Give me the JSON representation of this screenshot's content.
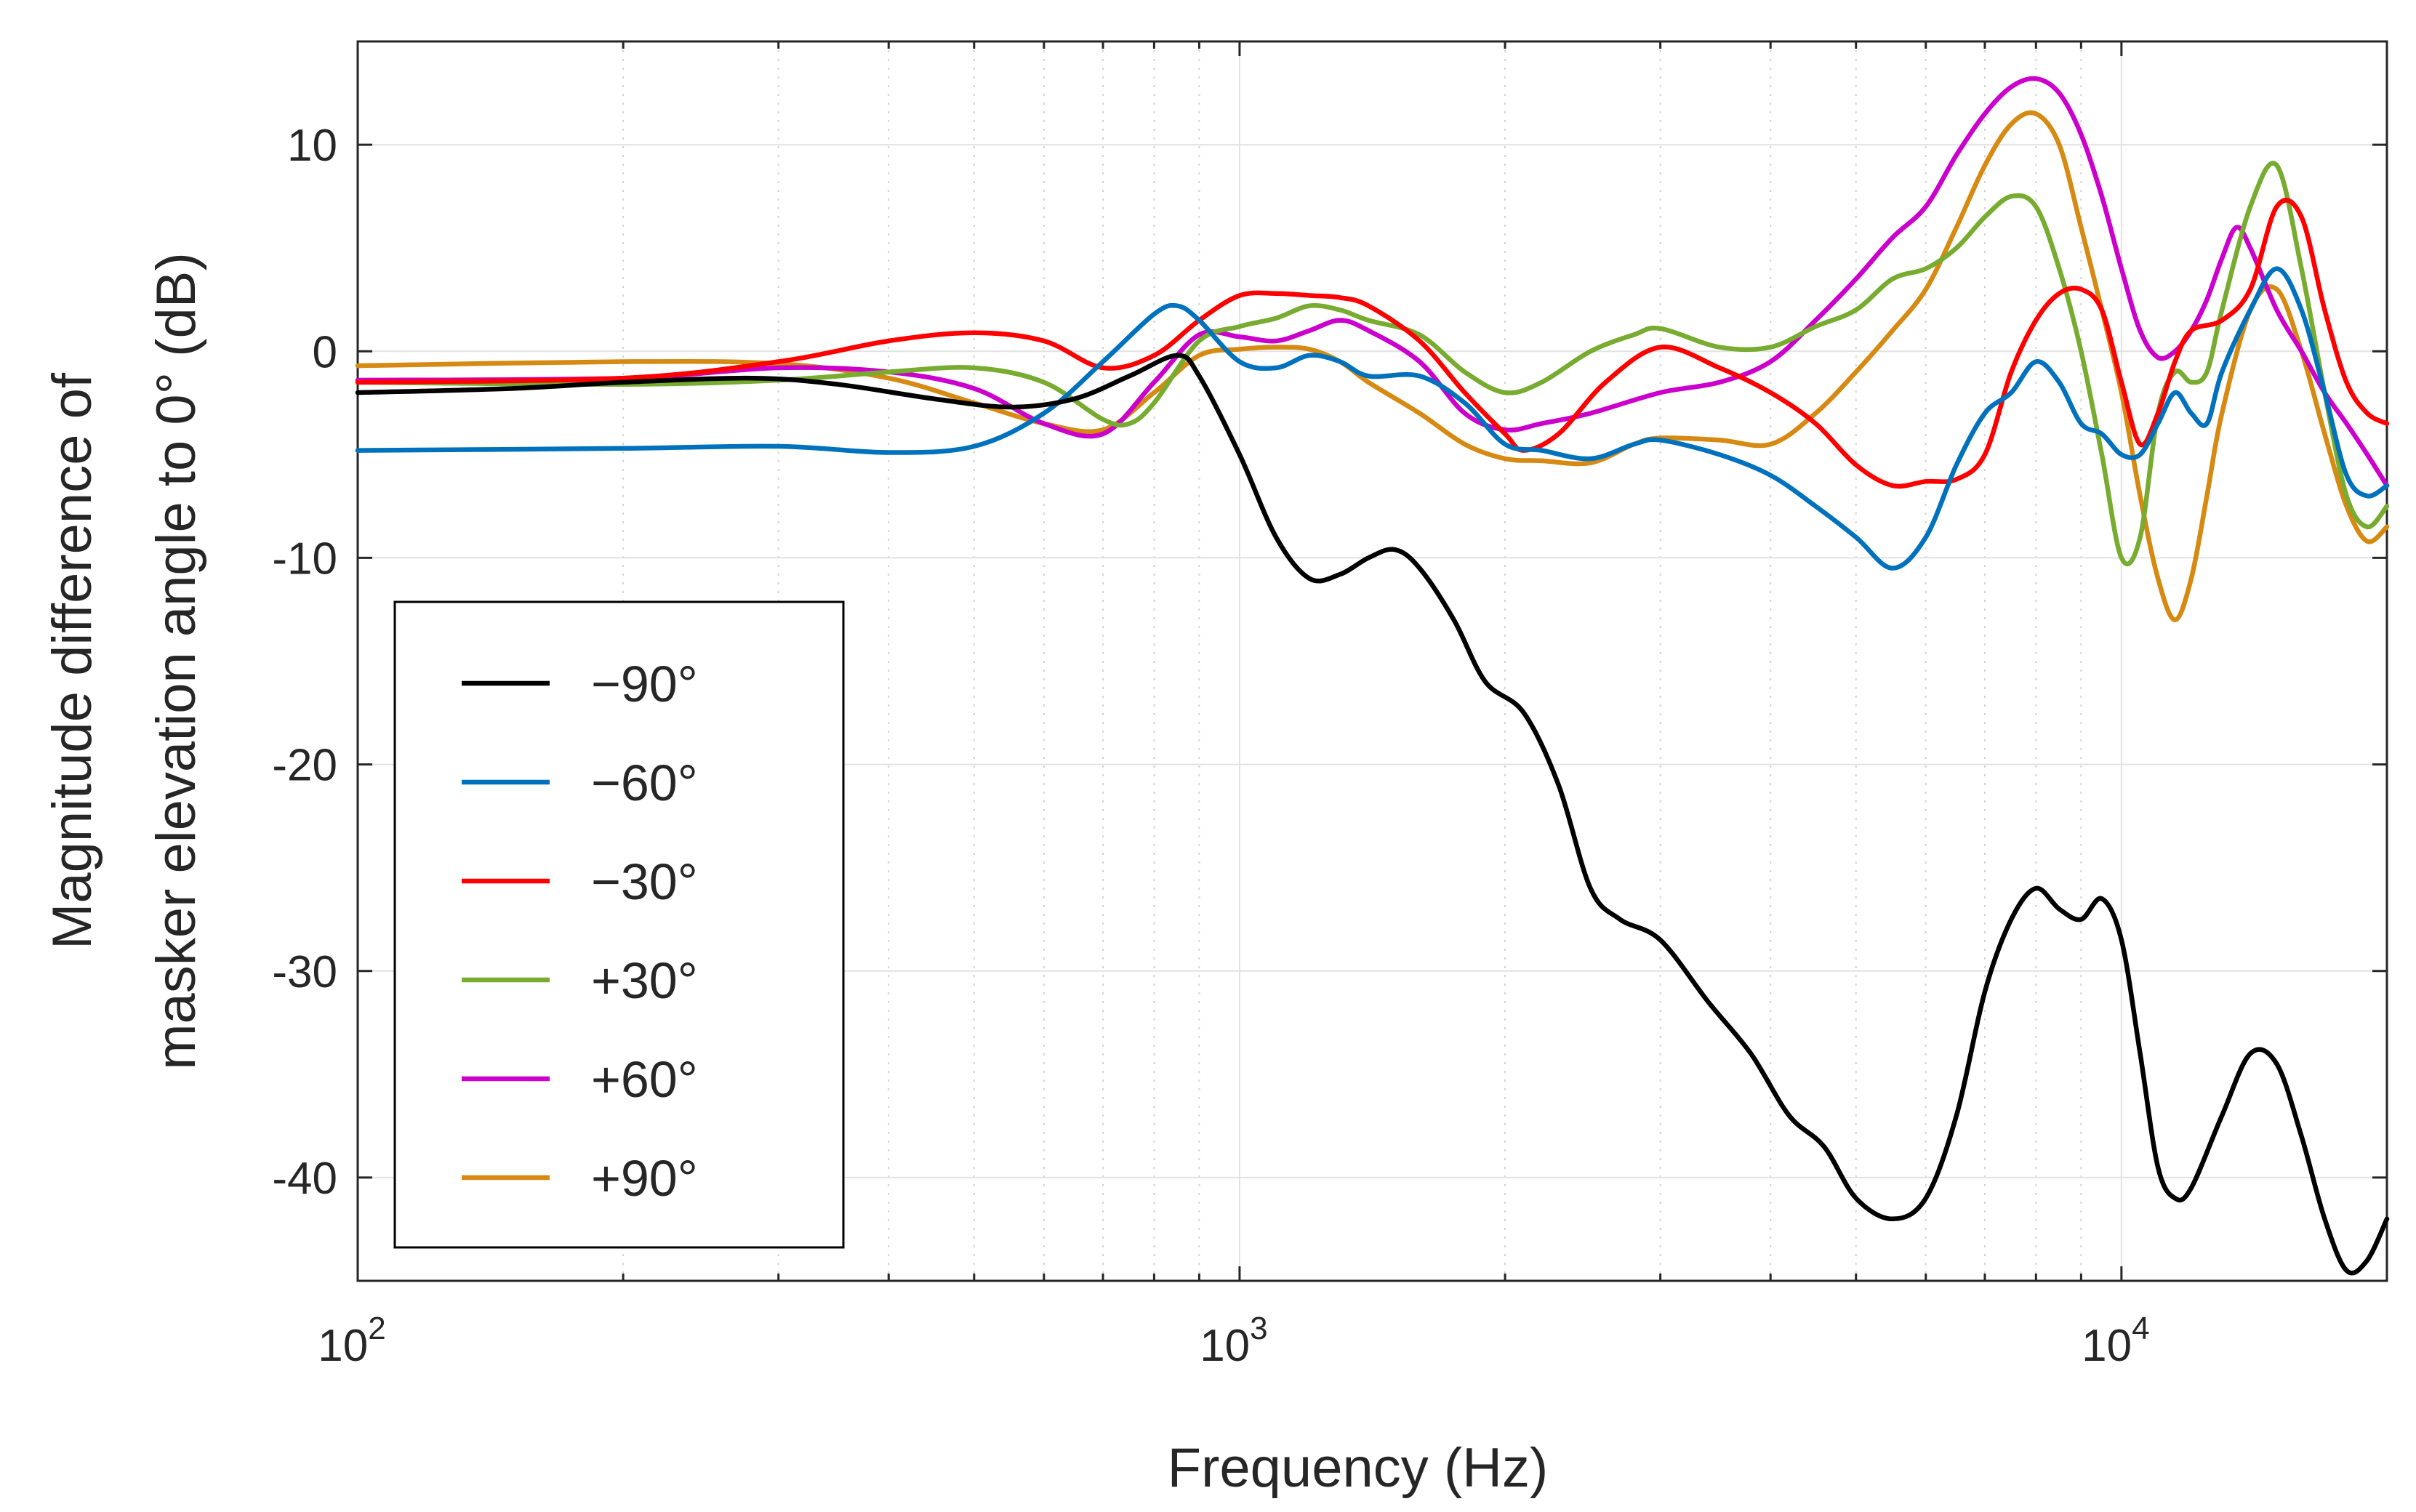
{
  "chart_data": {
    "type": "line",
    "title": "",
    "xlabel": "Frequency (Hz)",
    "ylabel": [
      "Magnitude difference of",
      "masker elevation angle to 0° (dB)"
    ],
    "x_scale": "log",
    "xlim": [
      100,
      20000
    ],
    "ylim": [
      -45,
      15
    ],
    "grid": true,
    "legend_location": "bottom-left",
    "x_ticks": [
      {
        "value": 100,
        "base": "10",
        "exp": "2"
      },
      {
        "value": 1000,
        "base": "10",
        "exp": "3"
      },
      {
        "value": 10000,
        "base": "10",
        "exp": "4"
      }
    ],
    "y_ticks": [
      {
        "value": 10,
        "label": "10"
      },
      {
        "value": 0,
        "label": "0"
      },
      {
        "value": -10,
        "label": "-10"
      },
      {
        "value": -20,
        "label": "-20"
      },
      {
        "value": -30,
        "label": "-30"
      },
      {
        "value": -40,
        "label": "-40"
      }
    ],
    "series": [
      {
        "name": "−90°",
        "color": "#000000",
        "points": [
          [
            100,
            -2
          ],
          [
            150,
            -1.8
          ],
          [
            200,
            -1.5
          ],
          [
            280,
            -1.3
          ],
          [
            350,
            -1.6
          ],
          [
            450,
            -2.3
          ],
          [
            550,
            -2.7
          ],
          [
            650,
            -2.3
          ],
          [
            750,
            -1.2
          ],
          [
            850,
            -0.2
          ],
          [
            900,
            -1.2
          ],
          [
            1000,
            -5
          ],
          [
            1100,
            -9
          ],
          [
            1200,
            -11
          ],
          [
            1300,
            -10.8
          ],
          [
            1400,
            -10
          ],
          [
            1500,
            -9.6
          ],
          [
            1600,
            -10.5
          ],
          [
            1750,
            -13
          ],
          [
            1900,
            -16
          ],
          [
            2100,
            -17.5
          ],
          [
            2300,
            -21
          ],
          [
            2500,
            -26
          ],
          [
            2700,
            -27.5
          ],
          [
            3000,
            -28.5
          ],
          [
            3400,
            -31.5
          ],
          [
            3800,
            -34
          ],
          [
            4200,
            -37
          ],
          [
            4600,
            -38.5
          ],
          [
            5000,
            -41
          ],
          [
            5500,
            -42
          ],
          [
            6000,
            -41
          ],
          [
            6500,
            -37
          ],
          [
            7000,
            -31
          ],
          [
            7500,
            -27.5
          ],
          [
            8000,
            -26
          ],
          [
            8500,
            -27
          ],
          [
            9000,
            -27.5
          ],
          [
            9500,
            -26.5
          ],
          [
            10000,
            -28.5
          ],
          [
            10500,
            -34
          ],
          [
            11000,
            -39.5
          ],
          [
            11500,
            -41
          ],
          [
            12000,
            -40.5
          ],
          [
            13000,
            -37
          ],
          [
            14000,
            -34
          ],
          [
            15000,
            -34.5
          ],
          [
            16000,
            -38
          ],
          [
            17000,
            -42
          ],
          [
            18000,
            -44.5
          ],
          [
            19000,
            -44
          ],
          [
            20000,
            -42
          ]
        ]
      },
      {
        "name": "−60°",
        "color": "#0072BD",
        "points": [
          [
            100,
            -4.8
          ],
          [
            200,
            -4.7
          ],
          [
            300,
            -4.6
          ],
          [
            400,
            -4.9
          ],
          [
            500,
            -4.6
          ],
          [
            600,
            -3
          ],
          [
            700,
            -0.5
          ],
          [
            800,
            1.8
          ],
          [
            850,
            2.2
          ],
          [
            900,
            1.5
          ],
          [
            1000,
            -0.5
          ],
          [
            1100,
            -0.8
          ],
          [
            1200,
            -0.2
          ],
          [
            1300,
            -0.5
          ],
          [
            1400,
            -1.2
          ],
          [
            1600,
            -1.2
          ],
          [
            1800,
            -2.5
          ],
          [
            2000,
            -4.5
          ],
          [
            2200,
            -4.8
          ],
          [
            2500,
            -5.2
          ],
          [
            2800,
            -4.5
          ],
          [
            3000,
            -4.3
          ],
          [
            3500,
            -5
          ],
          [
            4000,
            -6
          ],
          [
            4500,
            -7.5
          ],
          [
            5000,
            -9
          ],
          [
            5500,
            -10.5
          ],
          [
            6000,
            -9
          ],
          [
            6500,
            -5.5
          ],
          [
            7000,
            -3
          ],
          [
            7500,
            -2
          ],
          [
            8000,
            -0.5
          ],
          [
            8500,
            -1.5
          ],
          [
            9000,
            -3.5
          ],
          [
            9500,
            -4
          ],
          [
            10000,
            -5
          ],
          [
            10500,
            -5
          ],
          [
            11000,
            -3.5
          ],
          [
            11500,
            -2
          ],
          [
            12000,
            -3
          ],
          [
            12500,
            -3.5
          ],
          [
            13000,
            -1
          ],
          [
            14000,
            2
          ],
          [
            15000,
            4
          ],
          [
            16000,
            2
          ],
          [
            17000,
            -2
          ],
          [
            18000,
            -6
          ],
          [
            19000,
            -7
          ],
          [
            20000,
            -6.5
          ]
        ]
      },
      {
        "name": "−30°",
        "color": "#FF0000",
        "points": [
          [
            100,
            -1.5
          ],
          [
            200,
            -1.3
          ],
          [
            300,
            -0.5
          ],
          [
            400,
            0.5
          ],
          [
            500,
            0.9
          ],
          [
            600,
            0.5
          ],
          [
            700,
            -0.8
          ],
          [
            800,
            -0.2
          ],
          [
            900,
            1.5
          ],
          [
            1000,
            2.7
          ],
          [
            1100,
            2.8
          ],
          [
            1200,
            2.7
          ],
          [
            1300,
            2.6
          ],
          [
            1400,
            2.2
          ],
          [
            1600,
            0.5
          ],
          [
            1800,
            -2
          ],
          [
            2000,
            -4
          ],
          [
            2100,
            -4.8
          ],
          [
            2300,
            -4
          ],
          [
            2600,
            -1.5
          ],
          [
            3000,
            0.2
          ],
          [
            3500,
            -0.8
          ],
          [
            4000,
            -2
          ],
          [
            4500,
            -3.5
          ],
          [
            5000,
            -5.5
          ],
          [
            5500,
            -6.5
          ],
          [
            6000,
            -6.3
          ],
          [
            6500,
            -6.2
          ],
          [
            7000,
            -5
          ],
          [
            7500,
            -1
          ],
          [
            8000,
            1.5
          ],
          [
            8500,
            2.8
          ],
          [
            9000,
            3
          ],
          [
            9500,
            2
          ],
          [
            10000,
            -1.5
          ],
          [
            10500,
            -4.5
          ],
          [
            11000,
            -3
          ],
          [
            11500,
            -0.5
          ],
          [
            12000,
            1
          ],
          [
            13000,
            1.5
          ],
          [
            14000,
            3
          ],
          [
            15000,
            7
          ],
          [
            16000,
            6.5
          ],
          [
            17000,
            2
          ],
          [
            18000,
            -1.5
          ],
          [
            19000,
            -3
          ],
          [
            20000,
            -3.5
          ]
        ]
      },
      {
        "name": "+30°",
        "color": "#77AC30",
        "points": [
          [
            100,
            -1.5
          ],
          [
            200,
            -1.6
          ],
          [
            300,
            -1.4
          ],
          [
            400,
            -1.0
          ],
          [
            500,
            -0.8
          ],
          [
            600,
            -1.5
          ],
          [
            700,
            -3.3
          ],
          [
            750,
            -3.5
          ],
          [
            800,
            -2.5
          ],
          [
            900,
            0.5
          ],
          [
            1000,
            1.2
          ],
          [
            1100,
            1.6
          ],
          [
            1200,
            2.2
          ],
          [
            1300,
            2
          ],
          [
            1400,
            1.5
          ],
          [
            1600,
            0.8
          ],
          [
            1800,
            -1
          ],
          [
            2000,
            -2
          ],
          [
            2200,
            -1.5
          ],
          [
            2500,
            0
          ],
          [
            2800,
            0.8
          ],
          [
            3000,
            1.1
          ],
          [
            3500,
            0.2
          ],
          [
            4000,
            0.2
          ],
          [
            4500,
            1.2
          ],
          [
            5000,
            2
          ],
          [
            5500,
            3.5
          ],
          [
            6000,
            4
          ],
          [
            6500,
            5
          ],
          [
            7000,
            6.5
          ],
          [
            7500,
            7.5
          ],
          [
            8000,
            7
          ],
          [
            8500,
            4
          ],
          [
            9000,
            0
          ],
          [
            9500,
            -5
          ],
          [
            10000,
            -10
          ],
          [
            10500,
            -9
          ],
          [
            11000,
            -3
          ],
          [
            11500,
            -1
          ],
          [
            12000,
            -1.5
          ],
          [
            12500,
            -1
          ],
          [
            13000,
            2
          ],
          [
            14000,
            7
          ],
          [
            15000,
            9
          ],
          [
            16000,
            4
          ],
          [
            17000,
            -2
          ],
          [
            18000,
            -7
          ],
          [
            19000,
            -8.5
          ],
          [
            20000,
            -7.5
          ]
        ]
      },
      {
        "name": "+60°",
        "color": "#CC00CC",
        "points": [
          [
            100,
            -1.4
          ],
          [
            200,
            -1.3
          ],
          [
            300,
            -0.8
          ],
          [
            400,
            -1.0
          ],
          [
            500,
            -1.8
          ],
          [
            600,
            -3.5
          ],
          [
            700,
            -4.0
          ],
          [
            800,
            -1.5
          ],
          [
            900,
            0.8
          ],
          [
            1000,
            0.7
          ],
          [
            1100,
            0.5
          ],
          [
            1200,
            1
          ],
          [
            1300,
            1.5
          ],
          [
            1400,
            1
          ],
          [
            1600,
            -0.5
          ],
          [
            1800,
            -3
          ],
          [
            2000,
            -3.8
          ],
          [
            2200,
            -3.5
          ],
          [
            2500,
            -3
          ],
          [
            3000,
            -2
          ],
          [
            3500,
            -1.5
          ],
          [
            4000,
            -0.5
          ],
          [
            4500,
            1.5
          ],
          [
            5000,
            3.5
          ],
          [
            5500,
            5.5
          ],
          [
            6000,
            7
          ],
          [
            6500,
            9.5
          ],
          [
            7000,
            11.5
          ],
          [
            7500,
            12.8
          ],
          [
            8000,
            13.2
          ],
          [
            8500,
            12.5
          ],
          [
            9000,
            10.5
          ],
          [
            9500,
            7.5
          ],
          [
            10000,
            4
          ],
          [
            10500,
            1
          ],
          [
            11000,
            -0.3
          ],
          [
            11500,
            0
          ],
          [
            12000,
            1
          ],
          [
            12500,
            2.5
          ],
          [
            13000,
            4.5
          ],
          [
            13500,
            6
          ],
          [
            14000,
            5
          ],
          [
            15000,
            2
          ],
          [
            16000,
            0
          ],
          [
            17000,
            -2
          ],
          [
            18000,
            -3.5
          ],
          [
            19000,
            -5
          ],
          [
            20000,
            -6.5
          ]
        ]
      },
      {
        "name": "+90°",
        "color": "#D68A12",
        "points": [
          [
            100,
            -0.7
          ],
          [
            200,
            -0.5
          ],
          [
            300,
            -0.6
          ],
          [
            400,
            -1.3
          ],
          [
            500,
            -2.5
          ],
          [
            600,
            -3.5
          ],
          [
            700,
            -3.8
          ],
          [
            800,
            -2
          ],
          [
            900,
            -0.2
          ],
          [
            1000,
            0.1
          ],
          [
            1100,
            0.2
          ],
          [
            1200,
            0.1
          ],
          [
            1300,
            -0.5
          ],
          [
            1400,
            -1.5
          ],
          [
            1600,
            -3
          ],
          [
            1800,
            -4.5
          ],
          [
            2000,
            -5.2
          ],
          [
            2200,
            -5.3
          ],
          [
            2500,
            -5.4
          ],
          [
            2800,
            -4.5
          ],
          [
            3000,
            -4.2
          ],
          [
            3500,
            -4.3
          ],
          [
            4000,
            -4.5
          ],
          [
            4500,
            -3
          ],
          [
            5000,
            -1
          ],
          [
            5500,
            1
          ],
          [
            6000,
            3
          ],
          [
            6500,
            6
          ],
          [
            7000,
            9
          ],
          [
            7500,
            11
          ],
          [
            8000,
            11.5
          ],
          [
            8500,
            10
          ],
          [
            9000,
            6
          ],
          [
            9500,
            2
          ],
          [
            10000,
            -2
          ],
          [
            10500,
            -7
          ],
          [
            11000,
            -11
          ],
          [
            11500,
            -13
          ],
          [
            12000,
            -11
          ],
          [
            12500,
            -7
          ],
          [
            13000,
            -3
          ],
          [
            14000,
            2
          ],
          [
            15000,
            3
          ],
          [
            16000,
            0
          ],
          [
            17000,
            -4
          ],
          [
            18000,
            -7.5
          ],
          [
            19000,
            -9.2
          ],
          [
            20000,
            -8.5
          ]
        ]
      }
    ]
  }
}
